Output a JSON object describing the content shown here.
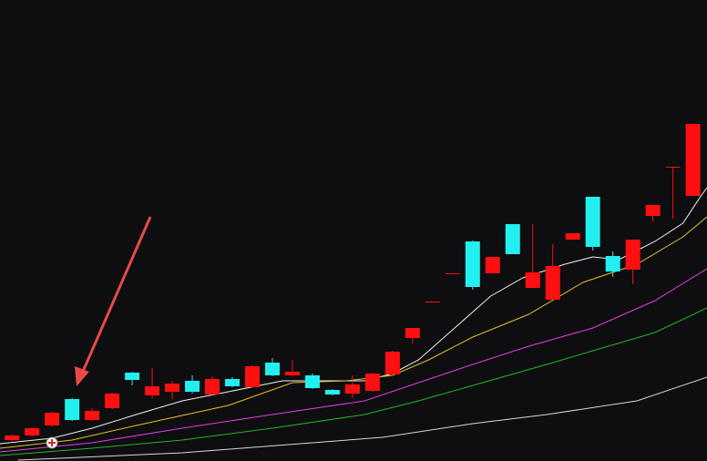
{
  "chart_data": {
    "type": "candlestick",
    "x": [
      0,
      1,
      2,
      3,
      4,
      5,
      6,
      7,
      8,
      9,
      10,
      11,
      12,
      13,
      14,
      15,
      16,
      17,
      18,
      19,
      20,
      21,
      22,
      23,
      24,
      25,
      26,
      27,
      28,
      29,
      30,
      31,
      32,
      33,
      34
    ],
    "open": [
      23,
      28,
      39,
      68,
      45,
      58,
      97,
      72,
      76,
      88,
      73,
      90,
      81,
      108,
      94,
      94,
      78,
      74,
      77,
      95,
      135,
      174,
      205,
      241,
      206,
      260,
      190,
      177,
      243,
      290,
      225,
      210,
      269,
      322,
      291
    ],
    "high": [
      29,
      37,
      54,
      69,
      58,
      75,
      98,
      102,
      88,
      94,
      93,
      92,
      105,
      113,
      111,
      96,
      79,
      94,
      97,
      121,
      146,
      175,
      206,
      242,
      224,
      260,
      260,
      238,
      250,
      290,
      230,
      243,
      281,
      323,
      370
    ],
    "low": [
      22,
      27,
      38,
      44,
      44,
      57,
      83,
      69,
      68,
      74,
      72,
      81,
      80,
      93,
      93,
      79,
      72,
      69,
      76,
      94,
      129,
      174,
      205,
      188,
      206,
      227,
      190,
      177,
      243,
      231,
      202,
      194,
      263,
      266,
      291
    ],
    "close": [
      28,
      36,
      53,
      45,
      55,
      74,
      89,
      82,
      85,
      76,
      90,
      82,
      104,
      94,
      98,
      80,
      73,
      84,
      96,
      120,
      146,
      175,
      206,
      191,
      224,
      227,
      207,
      214,
      250,
      235,
      208,
      243,
      281,
      323,
      370
    ],
    "up_color": "#ff1010",
    "down_color": "#22f0f0",
    "xlim": [
      -0.6,
      34.7
    ],
    "ylim": [
      0,
      506
    ],
    "lines": [
      {
        "color": "#f0f0f0",
        "x": [
          -0.6,
          2,
          4,
          6.2,
          8.5,
          10.8,
          13.5,
          15.8,
          17.6,
          19,
          20.3,
          22.1,
          23.9,
          25.5,
          27.6,
          29,
          30.3,
          32.1,
          33.5,
          34.4,
          34.7
        ],
        "values": [
          19,
          25,
          36,
          51,
          66,
          76,
          88,
          88,
          88,
          96,
          111,
          146,
          181,
          201,
          216,
          224,
          221,
          241,
          261,
          291,
          300
        ]
      },
      {
        "color": "#e2c22a",
        "x": [
          -0.6,
          3,
          6.2,
          10.8,
          14,
          16.7,
          19,
          20.8,
          23,
          25.8,
          28.5,
          31.2,
          33.5,
          34.7
        ],
        "values": [
          14,
          23,
          39,
          61,
          86,
          88,
          94,
          111,
          136,
          161,
          196,
          216,
          246,
          268
        ]
      },
      {
        "color": "#e23ee2",
        "x": [
          -0.6,
          4,
          8.5,
          13,
          17.6,
          20.3,
          23,
          25.8,
          29,
          32.1,
          34.7
        ],
        "values": [
          10,
          20,
          36,
          51,
          66,
          86,
          106,
          126,
          146,
          176,
          211
        ]
      },
      {
        "color": "#22b822",
        "x": [
          -0.6,
          4,
          8.5,
          13,
          17.6,
          20.3,
          23.5,
          26.7,
          29,
          32.1,
          34.7
        ],
        "values": [
          6,
          14,
          23,
          36,
          51,
          66,
          86,
          106,
          121,
          141,
          168
        ]
      },
      {
        "color": "#d8d8d8",
        "x": [
          0.3,
          8.5,
          14.4,
          18.5,
          23,
          26.7,
          31.2,
          34.7
        ],
        "values": [
          1,
          9,
          19,
          26,
          41,
          51,
          66,
          92
        ]
      }
    ]
  }
}
